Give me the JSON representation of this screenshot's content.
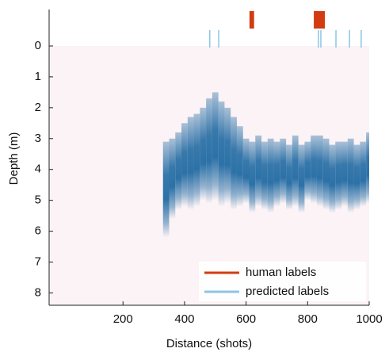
{
  "chart_data": {
    "type": "heatmap-band",
    "xlabel": "Distance (shots)",
    "ylabel": "Depth (m)",
    "xlim": [
      -40,
      1000
    ],
    "xticks": [
      200,
      400,
      600,
      800,
      1000
    ],
    "ylim": [
      0,
      8.4
    ],
    "yticks": [
      0,
      1,
      2,
      3,
      4,
      5,
      6,
      7,
      8
    ],
    "y_inverted": true,
    "profile": {
      "color": "#15639e",
      "x": [
        340,
        360,
        380,
        400,
        420,
        440,
        460,
        480,
        500,
        520,
        540,
        560,
        580,
        600,
        620,
        640,
        660,
        680,
        700,
        720,
        740,
        760,
        780,
        800,
        820,
        840,
        860,
        880,
        900,
        920,
        940,
        960,
        980,
        1000
      ],
      "top": [
        3.1,
        3.0,
        2.8,
        2.5,
        2.3,
        2.2,
        2.0,
        1.7,
        1.5,
        1.8,
        2.0,
        2.3,
        2.6,
        3.0,
        3.1,
        2.9,
        3.1,
        3.0,
        3.1,
        3.0,
        3.2,
        2.9,
        3.2,
        3.1,
        2.9,
        2.9,
        3.0,
        3.2,
        3.1,
        3.1,
        3.0,
        3.2,
        3.1,
        2.8
      ],
      "bottom": [
        6.2,
        5.6,
        5.3,
        5.2,
        5.3,
        5.2,
        5.0,
        5.1,
        5.0,
        5.2,
        5.1,
        5.3,
        5.2,
        5.1,
        5.4,
        5.2,
        5.3,
        5.4,
        5.2,
        5.1,
        5.3,
        5.2,
        5.4,
        5.0,
        5.1,
        5.2,
        5.3,
        5.4,
        5.3,
        5.2,
        5.4,
        5.3,
        5.2,
        5.1
      ]
    },
    "series": [
      {
        "name": "human labels",
        "color": "#d23c10",
        "ranges": [
          [
            611,
            626
          ],
          [
            820,
            856
          ]
        ]
      },
      {
        "name": "predicted labels",
        "color": "#8cc6e2",
        "x": [
          482,
          511,
          835,
          843,
          892,
          936,
          974
        ]
      }
    ]
  }
}
